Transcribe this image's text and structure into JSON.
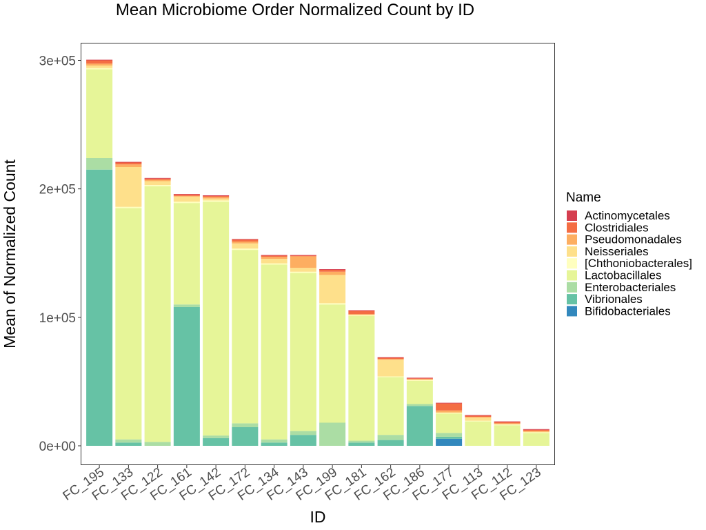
{
  "chart_data": {
    "type": "bar",
    "stacked": true,
    "title": "Mean Microbiome Order Normalized Count by ID",
    "xlabel": "ID",
    "ylabel": "Mean of Normalized Count",
    "ylim": [
      0,
      300000
    ],
    "yticks": [
      0,
      100000,
      200000,
      300000
    ],
    "ytick_labels": [
      "0e+00",
      "1e+05",
      "2e+05",
      "3e+05"
    ],
    "grid": false,
    "legend": {
      "title": "Name",
      "position": "right"
    },
    "categories": [
      "FC_195",
      "FC_133",
      "FC_122",
      "FC_161",
      "FC_142",
      "FC_172",
      "FC_134",
      "FC_143",
      "FC_199",
      "FC_181",
      "FC_162",
      "FC_186",
      "FC_177",
      "FC_113",
      "FC_112",
      "FC_123"
    ],
    "series": [
      {
        "name": "Bifidobacteriales",
        "color": "#3288bd",
        "values": [
          0,
          0,
          0,
          0,
          0,
          0,
          0,
          0,
          0,
          0,
          0,
          0,
          5500,
          0,
          0,
          0
        ]
      },
      {
        "name": "Vibrionales",
        "color": "#66c2a5",
        "values": [
          215000,
          2500,
          0,
          108000,
          6000,
          14500,
          2500,
          8500,
          0,
          2500,
          4500,
          31000,
          1500,
          0,
          0,
          0
        ]
      },
      {
        "name": "Enterobacteriales",
        "color": "#abdda4",
        "values": [
          9000,
          2500,
          3000,
          2000,
          2000,
          3000,
          2500,
          3000,
          18000,
          1500,
          4000,
          1500,
          3000,
          0,
          0,
          0
        ]
      },
      {
        "name": "Lactobacillales",
        "color": "#e6f598",
        "values": [
          69000,
          180000,
          199000,
          79000,
          182000,
          135000,
          136000,
          123000,
          92000,
          97000,
          45000,
          18000,
          15000,
          19000,
          16000,
          10000
        ]
      },
      {
        "name": "[Chthoniobacterales]",
        "color": "#ffffbf",
        "values": [
          1000,
          1000,
          1000,
          1000,
          1000,
          1000,
          1000,
          1000,
          1000,
          500,
          500,
          500,
          500,
          500,
          500,
          500
        ]
      },
      {
        "name": "Neisseriales",
        "color": "#fee08b",
        "values": [
          2000,
          31000,
          3000,
          4000,
          1500,
          4000,
          3500,
          3000,
          22000,
          500,
          13000,
          500,
          500,
          2500,
          500,
          500
        ]
      },
      {
        "name": "Pseudomonadales",
        "color": "#fdae61",
        "values": [
          1500,
          2000,
          1000,
          500,
          1000,
          1500,
          1500,
          9000,
          2500,
          500,
          500,
          500,
          1500,
          500,
          500,
          500
        ]
      },
      {
        "name": "Clostridiales",
        "color": "#f46d43",
        "values": [
          2500,
          1500,
          1000,
          1000,
          1000,
          1500,
          1000,
          500,
          1500,
          2500,
          1000,
          500,
          5500,
          1000,
          1000,
          1000
        ]
      },
      {
        "name": "Actinomycetales",
        "color": "#d53e4f",
        "values": [
          500,
          500,
          500,
          500,
          500,
          500,
          500,
          500,
          500,
          500,
          500,
          500,
          500,
          500,
          500,
          500
        ]
      }
    ],
    "legend_order": [
      "Actinomycetales",
      "Clostridiales",
      "Pseudomonadales",
      "Neisseriales",
      "[Chthoniobacterales]",
      "Lactobacillales",
      "Enterobacteriales",
      "Vibrionales",
      "Bifidobacteriales"
    ]
  }
}
